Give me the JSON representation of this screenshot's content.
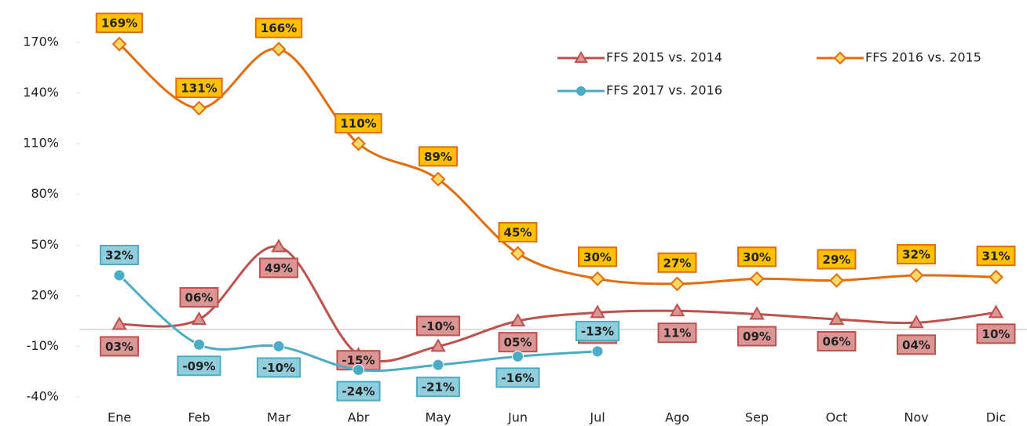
{
  "chart_data": {
    "type": "line",
    "categories": [
      "Ene",
      "Feb",
      "Mar",
      "Abr",
      "May",
      "Jun",
      "Jul",
      "Ago",
      "Sep",
      "Oct",
      "Nov",
      "Dic"
    ],
    "ylim": [
      -40,
      170
    ],
    "yticks": [
      {
        "value": -40,
        "label": "-40%"
      },
      {
        "value": -10,
        "label": "-10%"
      },
      {
        "value": 20,
        "label": "20%"
      },
      {
        "value": 50,
        "label": "50%"
      },
      {
        "value": 80,
        "label": "80%"
      },
      {
        "value": 110,
        "label": "110%"
      },
      {
        "value": 140,
        "label": "140%"
      },
      {
        "value": 170,
        "label": "170%"
      }
    ],
    "legend": "top-right",
    "series": [
      {
        "name": "FFS 2015 vs. 2014",
        "color": "#c0504d",
        "marker": "triangle",
        "values": [
          3,
          6,
          49,
          -15,
          -10,
          5,
          10,
          11,
          9,
          6,
          4,
          10
        ],
        "value_labels": [
          "03%",
          "06%",
          "49%",
          "-15%",
          "-10%",
          "05%",
          "10%",
          "11%",
          "09%",
          "06%",
          "04%",
          "10%"
        ]
      },
      {
        "name": "FFS 2016 vs. 2015",
        "color": "#e46c0a",
        "marker": "diamond",
        "values": [
          169,
          131,
          166,
          110,
          89,
          45,
          30,
          27,
          30,
          29,
          32,
          31
        ],
        "value_labels": [
          "169%",
          "131%",
          "166%",
          "110%",
          "89%",
          "45%",
          "30%",
          "27%",
          "30%",
          "29%",
          "32%",
          "31%"
        ]
      },
      {
        "name": "FFS 2017 vs. 2016",
        "color": "#4bacc6",
        "marker": "circle",
        "values": [
          32,
          -9,
          -10,
          -24,
          -21,
          -16,
          -13,
          null,
          null,
          null,
          null,
          null
        ],
        "value_labels": [
          "32%",
          "-09%",
          "-10%",
          "-24%",
          "-21%",
          "-16%",
          "-13%",
          null,
          null,
          null,
          null,
          null
        ]
      }
    ]
  }
}
